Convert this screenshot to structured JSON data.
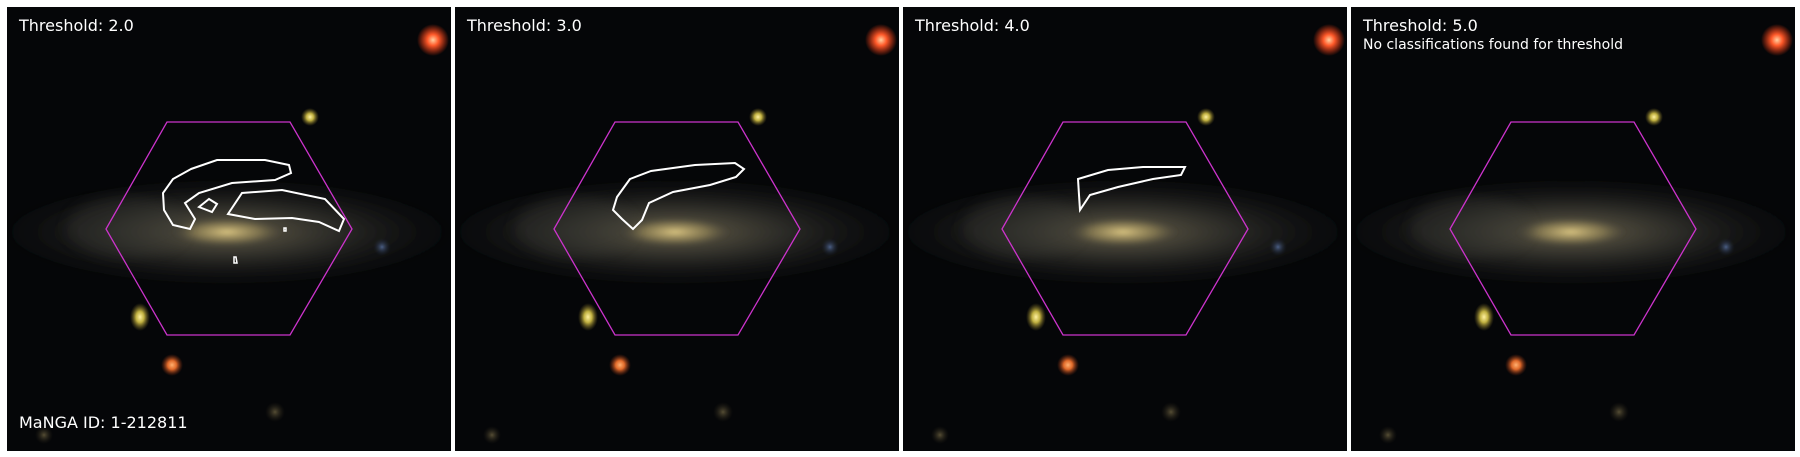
{
  "manga_id": "MaNGA ID: 1-212811",
  "colors": {
    "background": "#000000",
    "hexagon": "#cc33cc",
    "contour": "#ffffff",
    "galaxy_core": "#d8c27a",
    "bright_star": "#ff5a2a"
  },
  "panels": [
    {
      "title": "Threshold: 2.0",
      "note": ""
    },
    {
      "title": "Threshold: 3.0",
      "note": ""
    },
    {
      "title": "Threshold: 4.0",
      "note": ""
    },
    {
      "title": "Threshold: 5.0",
      "note": "No classifications found for threshold"
    }
  ]
}
